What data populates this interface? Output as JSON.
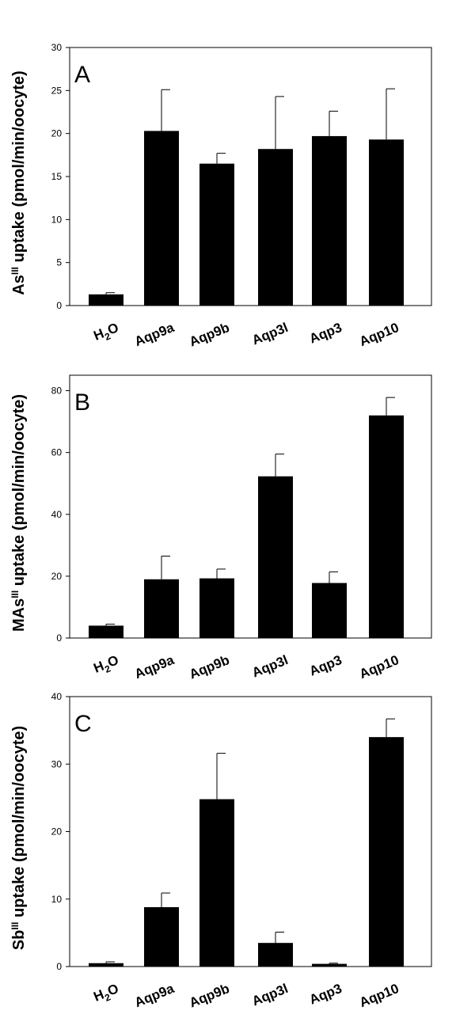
{
  "chart_data": [
    {
      "type": "bar",
      "panel": "A",
      "ylabel": {
        "prefix": "As",
        "sup": "III",
        "suffix": " uptake (pmol/min/oocyte)"
      },
      "categories": [
        "H2O",
        "Aqp9a",
        "Aqp9b",
        "Aqp3l",
        "Aqp3",
        "Aqp10"
      ],
      "values": [
        1.3,
        20.3,
        16.5,
        18.2,
        19.7,
        19.3
      ],
      "errors": [
        0.2,
        4.8,
        1.2,
        6.1,
        2.9,
        5.9
      ],
      "ylim": [
        0,
        30
      ],
      "yticks": [
        0,
        5,
        10,
        15,
        20,
        25,
        30
      ],
      "grid": false,
      "bar_color": "#000000"
    },
    {
      "type": "bar",
      "panel": "B",
      "ylabel": {
        "prefix": "MAs",
        "sup": "III",
        "suffix": " uptake (pmol/min/oocyte)"
      },
      "categories": [
        "H2O",
        "Aqp9a",
        "Aqp9b",
        "Aqp3l",
        "Aqp3",
        "Aqp10"
      ],
      "values": [
        4,
        19,
        19.3,
        52.3,
        17.8,
        72
      ],
      "errors": [
        0.5,
        7.5,
        3,
        7.2,
        3.6,
        5.8
      ],
      "ylim": [
        0,
        85
      ],
      "yticks": [
        0,
        20,
        40,
        60,
        80
      ],
      "grid": false,
      "bar_color": "#000000"
    },
    {
      "type": "bar",
      "panel": "C",
      "ylabel": {
        "prefix": "Sb",
        "sup": "III",
        "suffix": " uptake (pmol/min/oocyte)"
      },
      "categories": [
        "H2O",
        "Aqp9a",
        "Aqp9b",
        "Aqp3l",
        "Aqp3",
        "Aqp10"
      ],
      "values": [
        0.5,
        8.8,
        24.8,
        3.5,
        0.4,
        34
      ],
      "errors": [
        0.2,
        2.1,
        6.8,
        1.6,
        0.1,
        2.7
      ],
      "ylim": [
        0,
        40
      ],
      "yticks": [
        0,
        10,
        20,
        30,
        40
      ],
      "grid": false,
      "bar_color": "#000000"
    }
  ]
}
